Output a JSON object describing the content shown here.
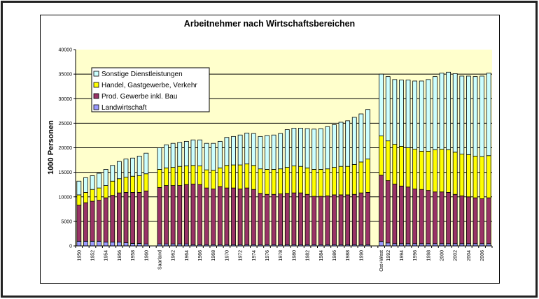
{
  "chart_data": {
    "type": "bar",
    "stacked": true,
    "title": "Arbeitnehmer nach Wirtschaftsbereichen",
    "xlabel": "",
    "ylabel": "1000 Personen",
    "ylim": [
      0,
      40000
    ],
    "yticks": [
      0,
      5000,
      10000,
      15000,
      20000,
      25000,
      30000,
      35000,
      40000
    ],
    "grid": true,
    "legend_position": "top-left",
    "plot_background": "#FFFFCC",
    "categories": [
      "1950",
      "",
      "1952",
      "",
      "1954",
      "",
      "1956",
      "",
      "1958",
      "",
      "1960",
      null,
      "Saarland",
      "",
      "1962",
      "",
      "1964",
      "",
      "1966",
      "",
      "1968",
      "",
      "1970",
      "",
      "1972",
      "",
      "1974",
      "",
      "1976",
      "",
      "1978",
      "",
      "1980",
      "",
      "1982",
      "",
      "1984",
      "",
      "1986",
      "",
      "1988",
      "",
      "1990",
      "",
      null,
      "Ost+West",
      "1992",
      "",
      "1994",
      "",
      "1996",
      "",
      "1998",
      "",
      "2000",
      "",
      "2002",
      "",
      "2004",
      "",
      "2006",
      ""
    ],
    "series": [
      {
        "name": "Landwirtschaft",
        "color": "#9999FF",
        "values": [
          950,
          950,
          950,
          950,
          800,
          800,
          800,
          650,
          500,
          500,
          400,
          null,
          400,
          400,
          400,
          400,
          400,
          250,
          250,
          250,
          250,
          250,
          250,
          250,
          250,
          250,
          250,
          250,
          250,
          250,
          250,
          250,
          250,
          250,
          250,
          250,
          250,
          250,
          250,
          250,
          250,
          250,
          250,
          250,
          null,
          900,
          600,
          450,
          450,
          450,
          450,
          450,
          450,
          450,
          450,
          450,
          450,
          450,
          450,
          450,
          450,
          450
        ]
      },
      {
        "name": "Prod. Gewerbe inkl. Bau",
        "color": "#993366",
        "values": [
          7350,
          7850,
          8150,
          8350,
          9000,
          9500,
          10000,
          10250,
          10400,
          10400,
          10800,
          null,
          11500,
          11900,
          11900,
          11900,
          12100,
          12350,
          12250,
          11550,
          11350,
          11850,
          11550,
          11550,
          11350,
          11550,
          11250,
          10450,
          10250,
          10250,
          10350,
          10450,
          10550,
          10550,
          10250,
          9850,
          9850,
          9950,
          10150,
          10150,
          10150,
          10250,
          10550,
          10650,
          null,
          13500,
          12700,
          12150,
          11750,
          11550,
          11150,
          11050,
          10850,
          10550,
          10550,
          10450,
          10050,
          9750,
          9550,
          9350,
          9150,
          9350
        ]
      },
      {
        "name": "Handel, Gastgewerbe, Verkehr",
        "color": "#FFFF00",
        "values": [
          2100,
          2100,
          2400,
          2500,
          2500,
          2900,
          2900,
          3100,
          3300,
          3400,
          3500,
          null,
          3700,
          3600,
          3700,
          3900,
          3800,
          3800,
          3800,
          3700,
          3800,
          3800,
          4600,
          4700,
          4900,
          4900,
          4900,
          5000,
          5100,
          5100,
          5100,
          5300,
          5500,
          5400,
          5400,
          5500,
          5500,
          5500,
          5600,
          5800,
          5800,
          6100,
          6300,
          6800,
          null,
          8000,
          8100,
          8100,
          8100,
          8000,
          8100,
          7800,
          8000,
          8600,
          8700,
          8700,
          8600,
          8500,
          8600,
          8500,
          8600,
          8600
        ]
      },
      {
        "name": "Sonstige Dienstleistungen",
        "color": "#CCFFFF",
        "values": [
          2800,
          3000,
          2800,
          3000,
          3300,
          3200,
          3500,
          3700,
          3700,
          4000,
          4200,
          null,
          4400,
          4700,
          4900,
          4900,
          5000,
          5200,
          5300,
          5400,
          5500,
          5400,
          5700,
          5800,
          6100,
          6300,
          6500,
          6600,
          6900,
          7000,
          7200,
          7700,
          7700,
          7800,
          8000,
          8200,
          8300,
          8600,
          8700,
          9000,
          9300,
          9600,
          9800,
          10100,
          null,
          12600,
          13100,
          13200,
          13500,
          13800,
          13900,
          14300,
          14600,
          14900,
          15500,
          15800,
          16000,
          15900,
          16000,
          16200,
          16400,
          16800
        ]
      }
    ],
    "legend_order": [
      3,
      2,
      1,
      0
    ]
  }
}
